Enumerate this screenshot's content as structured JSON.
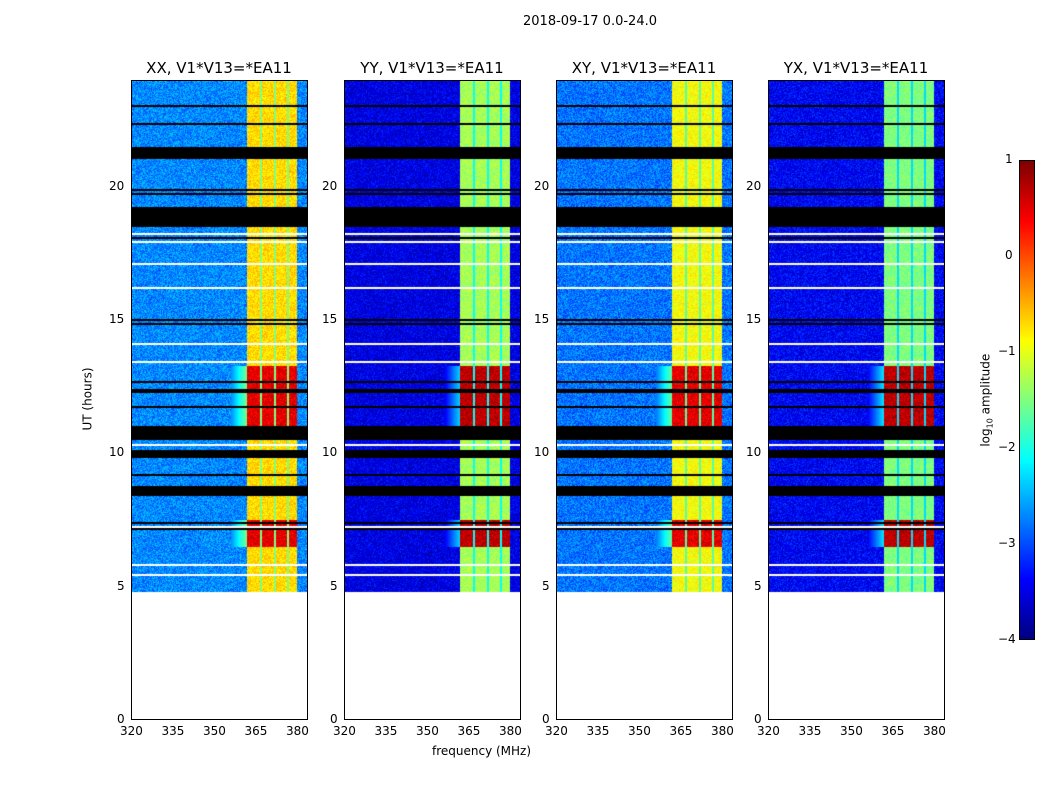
{
  "suptitle": "2018-09-17 0.0-24.0",
  "chart_data": {
    "type": "heatmap",
    "title": "2018-09-17 0.0-24.0",
    "xlabel": "frequency (MHz)",
    "ylabel": "UT (hours)",
    "xlim": [
      320,
      384
    ],
    "ylim": [
      0,
      24
    ],
    "xticks": [
      "320",
      "335",
      "350",
      "365",
      "380"
    ],
    "yticks": [
      "0",
      "5",
      "10",
      "15",
      "20"
    ],
    "colorbar": {
      "label": "log10 amplitude",
      "label_main": "log",
      "label_sub": "10",
      "label_tail": " amplitude",
      "range": [
        -4,
        1
      ],
      "ticks": [
        "1",
        "0",
        "−1",
        "−2",
        "−3",
        "−4"
      ],
      "colormap": "jet"
    },
    "data_start_hour": 4.8,
    "band_MHz": [
      362,
      380
    ],
    "band_gaps_MHz": [
      367,
      372,
      377
    ],
    "hot_periods_hours": [
      [
        6.5,
        7.5
      ],
      [
        11.0,
        13.3
      ]
    ],
    "flagged_black_hours": [
      [
        8.4,
        8.8
      ],
      [
        10.6,
        11.0
      ],
      [
        12.3,
        12.45
      ],
      [
        18.5,
        19.3
      ],
      [
        21.1,
        21.5
      ],
      [
        23.0,
        23.1
      ]
    ],
    "panels": [
      {
        "title": "XX, V1*V13=*EA11",
        "background_log_amp": -2.7,
        "band_log_amp": -0.7,
        "hot_log_amp": 0.5
      },
      {
        "title": "YY, V1*V13=*EA11",
        "background_log_amp": -3.5,
        "band_log_amp": -1.3,
        "hot_log_amp": 0.7
      },
      {
        "title": "XY, V1*V13=*EA11",
        "background_log_amp": -2.8,
        "band_log_amp": -0.9,
        "hot_log_amp": 0.5
      },
      {
        "title": "YX, V1*V13=*EA11",
        "background_log_amp": -3.4,
        "band_log_amp": -1.5,
        "hot_log_amp": 0.7
      }
    ]
  }
}
